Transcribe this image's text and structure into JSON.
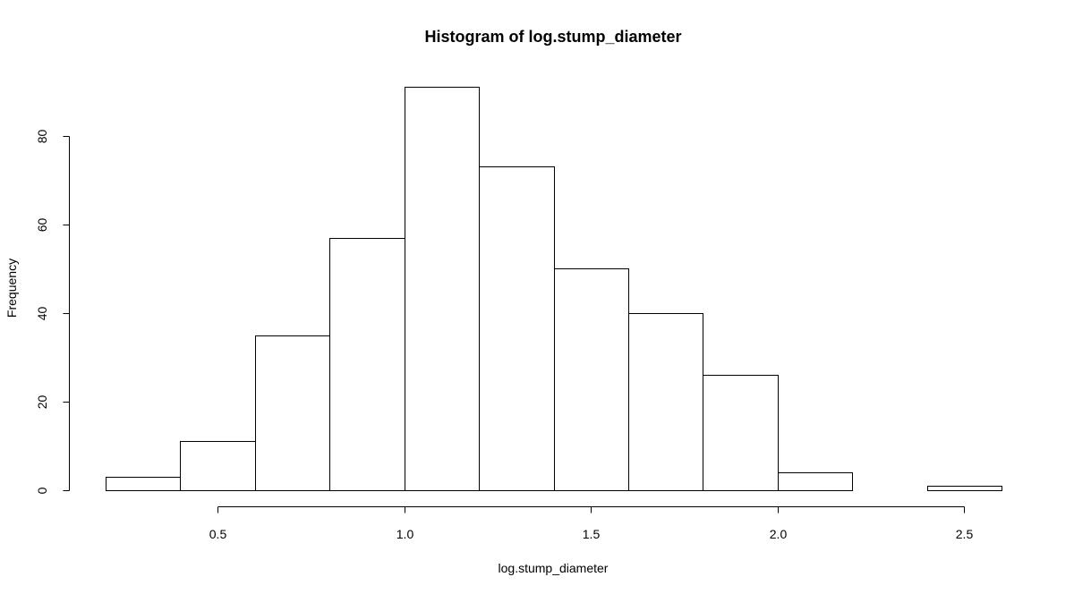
{
  "chart_data": {
    "type": "bar",
    "title": "Histogram of log.stump_diameter",
    "xlabel": "log.stump_diameter",
    "ylabel": "Frequency",
    "bins": [
      {
        "start": 0.2,
        "end": 0.4,
        "count": 3
      },
      {
        "start": 0.4,
        "end": 0.6,
        "count": 11
      },
      {
        "start": 0.6,
        "end": 0.8,
        "count": 35
      },
      {
        "start": 0.8,
        "end": 1.0,
        "count": 57
      },
      {
        "start": 1.0,
        "end": 1.2,
        "count": 91
      },
      {
        "start": 1.2,
        "end": 1.4,
        "count": 73
      },
      {
        "start": 1.4,
        "end": 1.6,
        "count": 50
      },
      {
        "start": 1.6,
        "end": 1.8,
        "count": 40
      },
      {
        "start": 1.8,
        "end": 2.0,
        "count": 26
      },
      {
        "start": 2.0,
        "end": 2.2,
        "count": 4
      },
      {
        "start": 2.2,
        "end": 2.4,
        "count": 0
      },
      {
        "start": 2.4,
        "end": 2.6,
        "count": 1
      }
    ],
    "xticks": [
      0.5,
      1.0,
      1.5,
      2.0,
      2.5
    ],
    "xtick_labels": [
      "0.5",
      "1.0",
      "1.5",
      "2.0",
      "2.5"
    ],
    "yticks": [
      0,
      20,
      40,
      60,
      80
    ],
    "ytick_labels": [
      "0",
      "20",
      "40",
      "60",
      "80"
    ],
    "xlim": [
      0.2,
      2.6
    ],
    "ylim": [
      0,
      91
    ],
    "grid": false,
    "legend": "none",
    "colors": {
      "bar_fill": "#ffffff",
      "bar_stroke": "#000000"
    }
  }
}
